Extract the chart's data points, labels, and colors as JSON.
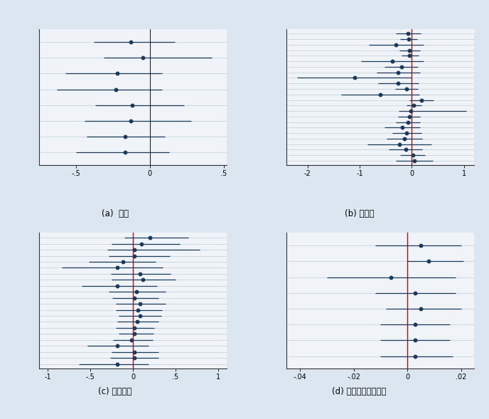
{
  "background_color": "#dce6f0",
  "plot_bg_color": "#f0f4f8",
  "dot_color": "#1a3a5c",
  "line_color": "#1a3a5c",
  "vline_color": "#cc0000",
  "panel_a": {
    "title": "(a)  人種",
    "xlim": [
      -0.75,
      0.52
    ],
    "xticks": [
      -0.5,
      0.0,
      0.5
    ],
    "xticklabels": [
      "-.5",
      "0",
      ".5"
    ],
    "vline": null,
    "vline_black": 0.0,
    "points": [
      {
        "est": -0.13,
        "lo": -0.38,
        "hi": 0.17
      },
      {
        "est": -0.05,
        "lo": -0.31,
        "hi": 0.42
      },
      {
        "est": -0.22,
        "lo": -0.57,
        "hi": 0.08
      },
      {
        "est": -0.23,
        "lo": -0.63,
        "hi": 0.08
      },
      {
        "est": -0.12,
        "lo": -0.37,
        "hi": 0.23
      },
      {
        "est": -0.13,
        "lo": -0.44,
        "hi": 0.28
      },
      {
        "est": -0.17,
        "lo": -0.43,
        "hi": 0.1
      },
      {
        "est": -0.17,
        "lo": -0.5,
        "hi": 0.13
      }
    ]
  },
  "panel_b": {
    "title": "(b) 党派性",
    "xlim": [
      -2.4,
      1.2
    ],
    "xticks": [
      -2,
      -1,
      0,
      1
    ],
    "xticklabels": [
      "-2",
      "-1",
      "0",
      "1"
    ],
    "vline": 0.0,
    "vline_black": null,
    "points": [
      {
        "est": -0.07,
        "lo": -0.3,
        "hi": 0.17
      },
      {
        "est": -0.06,
        "lo": -0.22,
        "hi": 0.11
      },
      {
        "est": -0.3,
        "lo": -0.82,
        "hi": 0.22
      },
      {
        "est": -0.04,
        "lo": -0.24,
        "hi": 0.16
      },
      {
        "est": -0.04,
        "lo": -0.2,
        "hi": 0.13
      },
      {
        "est": -0.38,
        "lo": -0.97,
        "hi": 0.22
      },
      {
        "est": -0.2,
        "lo": -0.52,
        "hi": 0.12
      },
      {
        "est": -0.26,
        "lo": -0.68,
        "hi": 0.16
      },
      {
        "est": -1.1,
        "lo": -2.2,
        "hi": 0.0
      },
      {
        "est": -0.26,
        "lo": -0.65,
        "hi": 0.13
      },
      {
        "est": -0.1,
        "lo": -0.32,
        "hi": 0.12
      },
      {
        "est": -0.6,
        "lo": -1.35,
        "hi": 0.15
      },
      {
        "est": 0.18,
        "lo": -0.05,
        "hi": 0.42
      },
      {
        "est": 0.04,
        "lo": -0.1,
        "hi": 0.18
      },
      {
        "est": -0.02,
        "lo": -0.25,
        "hi": 1.05
      },
      {
        "est": -0.05,
        "lo": -0.26,
        "hi": 0.16
      },
      {
        "est": -0.07,
        "lo": -0.3,
        "hi": 0.16
      },
      {
        "est": -0.18,
        "lo": -0.52,
        "hi": 0.16
      },
      {
        "est": -0.1,
        "lo": -0.38,
        "hi": 0.18
      },
      {
        "est": -0.14,
        "lo": -0.48,
        "hi": 0.2
      },
      {
        "est": -0.24,
        "lo": -0.85,
        "hi": 0.37
      },
      {
        "est": -0.12,
        "lo": -0.44,
        "hi": 0.2
      },
      {
        "est": 0.02,
        "lo": -0.22,
        "hi": 0.26
      },
      {
        "est": 0.05,
        "lo": -0.3,
        "hi": 0.4
      }
    ]
  },
  "panel_c": {
    "title": "(c) 教育水準",
    "xlim": [
      -1.1,
      1.1
    ],
    "xticks": [
      -1,
      -0.5,
      0,
      0.5,
      1
    ],
    "xticklabels": [
      "-1",
      "-.5",
      "0",
      ".5",
      "1"
    ],
    "vline": 0.0,
    "vline_black": null,
    "points": [
      {
        "est": 0.2,
        "lo": -0.1,
        "hi": 0.65
      },
      {
        "est": 0.1,
        "lo": -0.25,
        "hi": 0.55
      },
      {
        "est": 0.02,
        "lo": -0.3,
        "hi": 0.78
      },
      {
        "est": 0.02,
        "lo": -0.28,
        "hi": 0.43
      },
      {
        "est": -0.12,
        "lo": -0.52,
        "hi": 0.27
      },
      {
        "est": -0.18,
        "lo": -0.83,
        "hi": 0.35
      },
      {
        "est": 0.08,
        "lo": -0.26,
        "hi": 0.44
      },
      {
        "est": 0.12,
        "lo": -0.25,
        "hi": 0.5
      },
      {
        "est": -0.18,
        "lo": -0.6,
        "hi": 0.28
      },
      {
        "est": 0.04,
        "lo": -0.28,
        "hi": 0.38
      },
      {
        "est": 0.02,
        "lo": -0.24,
        "hi": 0.3
      },
      {
        "est": 0.08,
        "lo": -0.2,
        "hi": 0.38
      },
      {
        "est": 0.06,
        "lo": -0.2,
        "hi": 0.34
      },
      {
        "est": 0.08,
        "lo": -0.17,
        "hi": 0.33
      },
      {
        "est": 0.05,
        "lo": -0.18,
        "hi": 0.3
      },
      {
        "est": 0.02,
        "lo": -0.2,
        "hi": 0.25
      },
      {
        "est": 0.02,
        "lo": -0.17,
        "hi": 0.24
      },
      {
        "est": -0.02,
        "lo": -0.23,
        "hi": 0.23
      },
      {
        "est": -0.18,
        "lo": -0.53,
        "hi": 0.18
      },
      {
        "est": 0.02,
        "lo": -0.25,
        "hi": 0.3
      },
      {
        "est": 0.02,
        "lo": -0.27,
        "hi": 0.3
      },
      {
        "est": -0.18,
        "lo": -0.63,
        "hi": 0.18
      }
    ]
  },
  "panel_d": {
    "title": "(d) 移民居住者の割合",
    "xlim": [
      -0.045,
      0.025
    ],
    "xticks": [
      -0.04,
      -0.02,
      0,
      0.02
    ],
    "xticklabels": [
      "-.04",
      "-.02",
      "0",
      ".02"
    ],
    "vline": 0.0,
    "vline_black": null,
    "points": [
      {
        "est": 0.005,
        "lo": -0.012,
        "hi": 0.02
      },
      {
        "est": 0.008,
        "lo": -0.0,
        "hi": 0.021
      },
      {
        "est": -0.006,
        "lo": -0.03,
        "hi": 0.018
      },
      {
        "est": 0.003,
        "lo": -0.012,
        "hi": 0.018
      },
      {
        "est": 0.005,
        "lo": -0.008,
        "hi": 0.02
      },
      {
        "est": 0.003,
        "lo": -0.01,
        "hi": 0.016
      },
      {
        "est": 0.003,
        "lo": -0.01,
        "hi": 0.016
      },
      {
        "est": 0.003,
        "lo": -0.01,
        "hi": 0.017
      }
    ]
  }
}
